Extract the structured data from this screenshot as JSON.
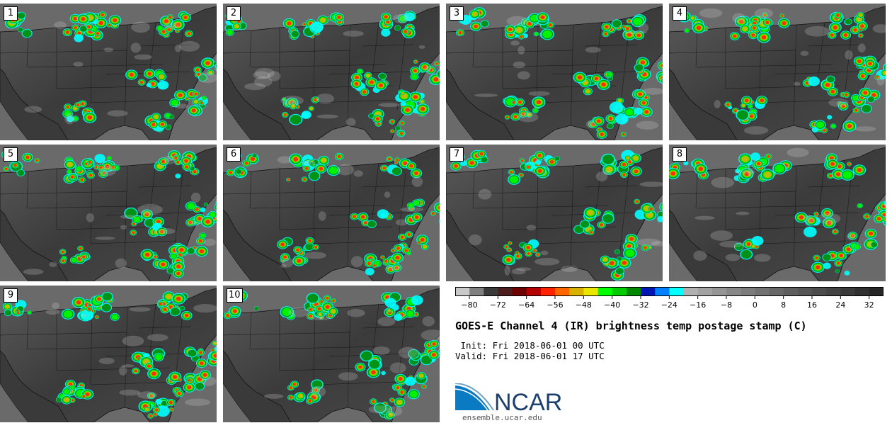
{
  "panels": [
    "1",
    "2",
    "3",
    "4",
    "5",
    "6",
    "7",
    "8",
    "9",
    "10"
  ],
  "colorbar": {
    "tick_labels": [
      "−80",
      "−72",
      "−64",
      "−56",
      "−48",
      "−40",
      "−32",
      "−24",
      "−16",
      "−8",
      "0",
      "8",
      "16",
      "24",
      "32"
    ],
    "colors": [
      "#c8c8c8",
      "#7f7f7f",
      "#3a3a3a",
      "#4b1d1d",
      "#6e0000",
      "#b30000",
      "#ff2200",
      "#ff6600",
      "#d9b100",
      "#ebe600",
      "#00ff00",
      "#00cc00",
      "#008800",
      "#0018b3",
      "#0080ff",
      "#00ffff",
      "#b0b0b0",
      "#a2a2a2",
      "#959595",
      "#888888",
      "#7c7c7c",
      "#717171",
      "#676767",
      "#5e5e5e",
      "#555555",
      "#4c4c4c",
      "#434343",
      "#3a3a3a",
      "#303030",
      "#262626"
    ]
  },
  "title": "GOES-E Channel 4 (IR) brightness temp postage stamp (C)",
  "init_line": " Init: Fri 2018-06-01 00 UTC",
  "valid_line": "Valid: Fri 2018-06-01 17 UTC",
  "logo": {
    "text": "NCAR",
    "url": "ensemble.ucar.edu"
  }
}
